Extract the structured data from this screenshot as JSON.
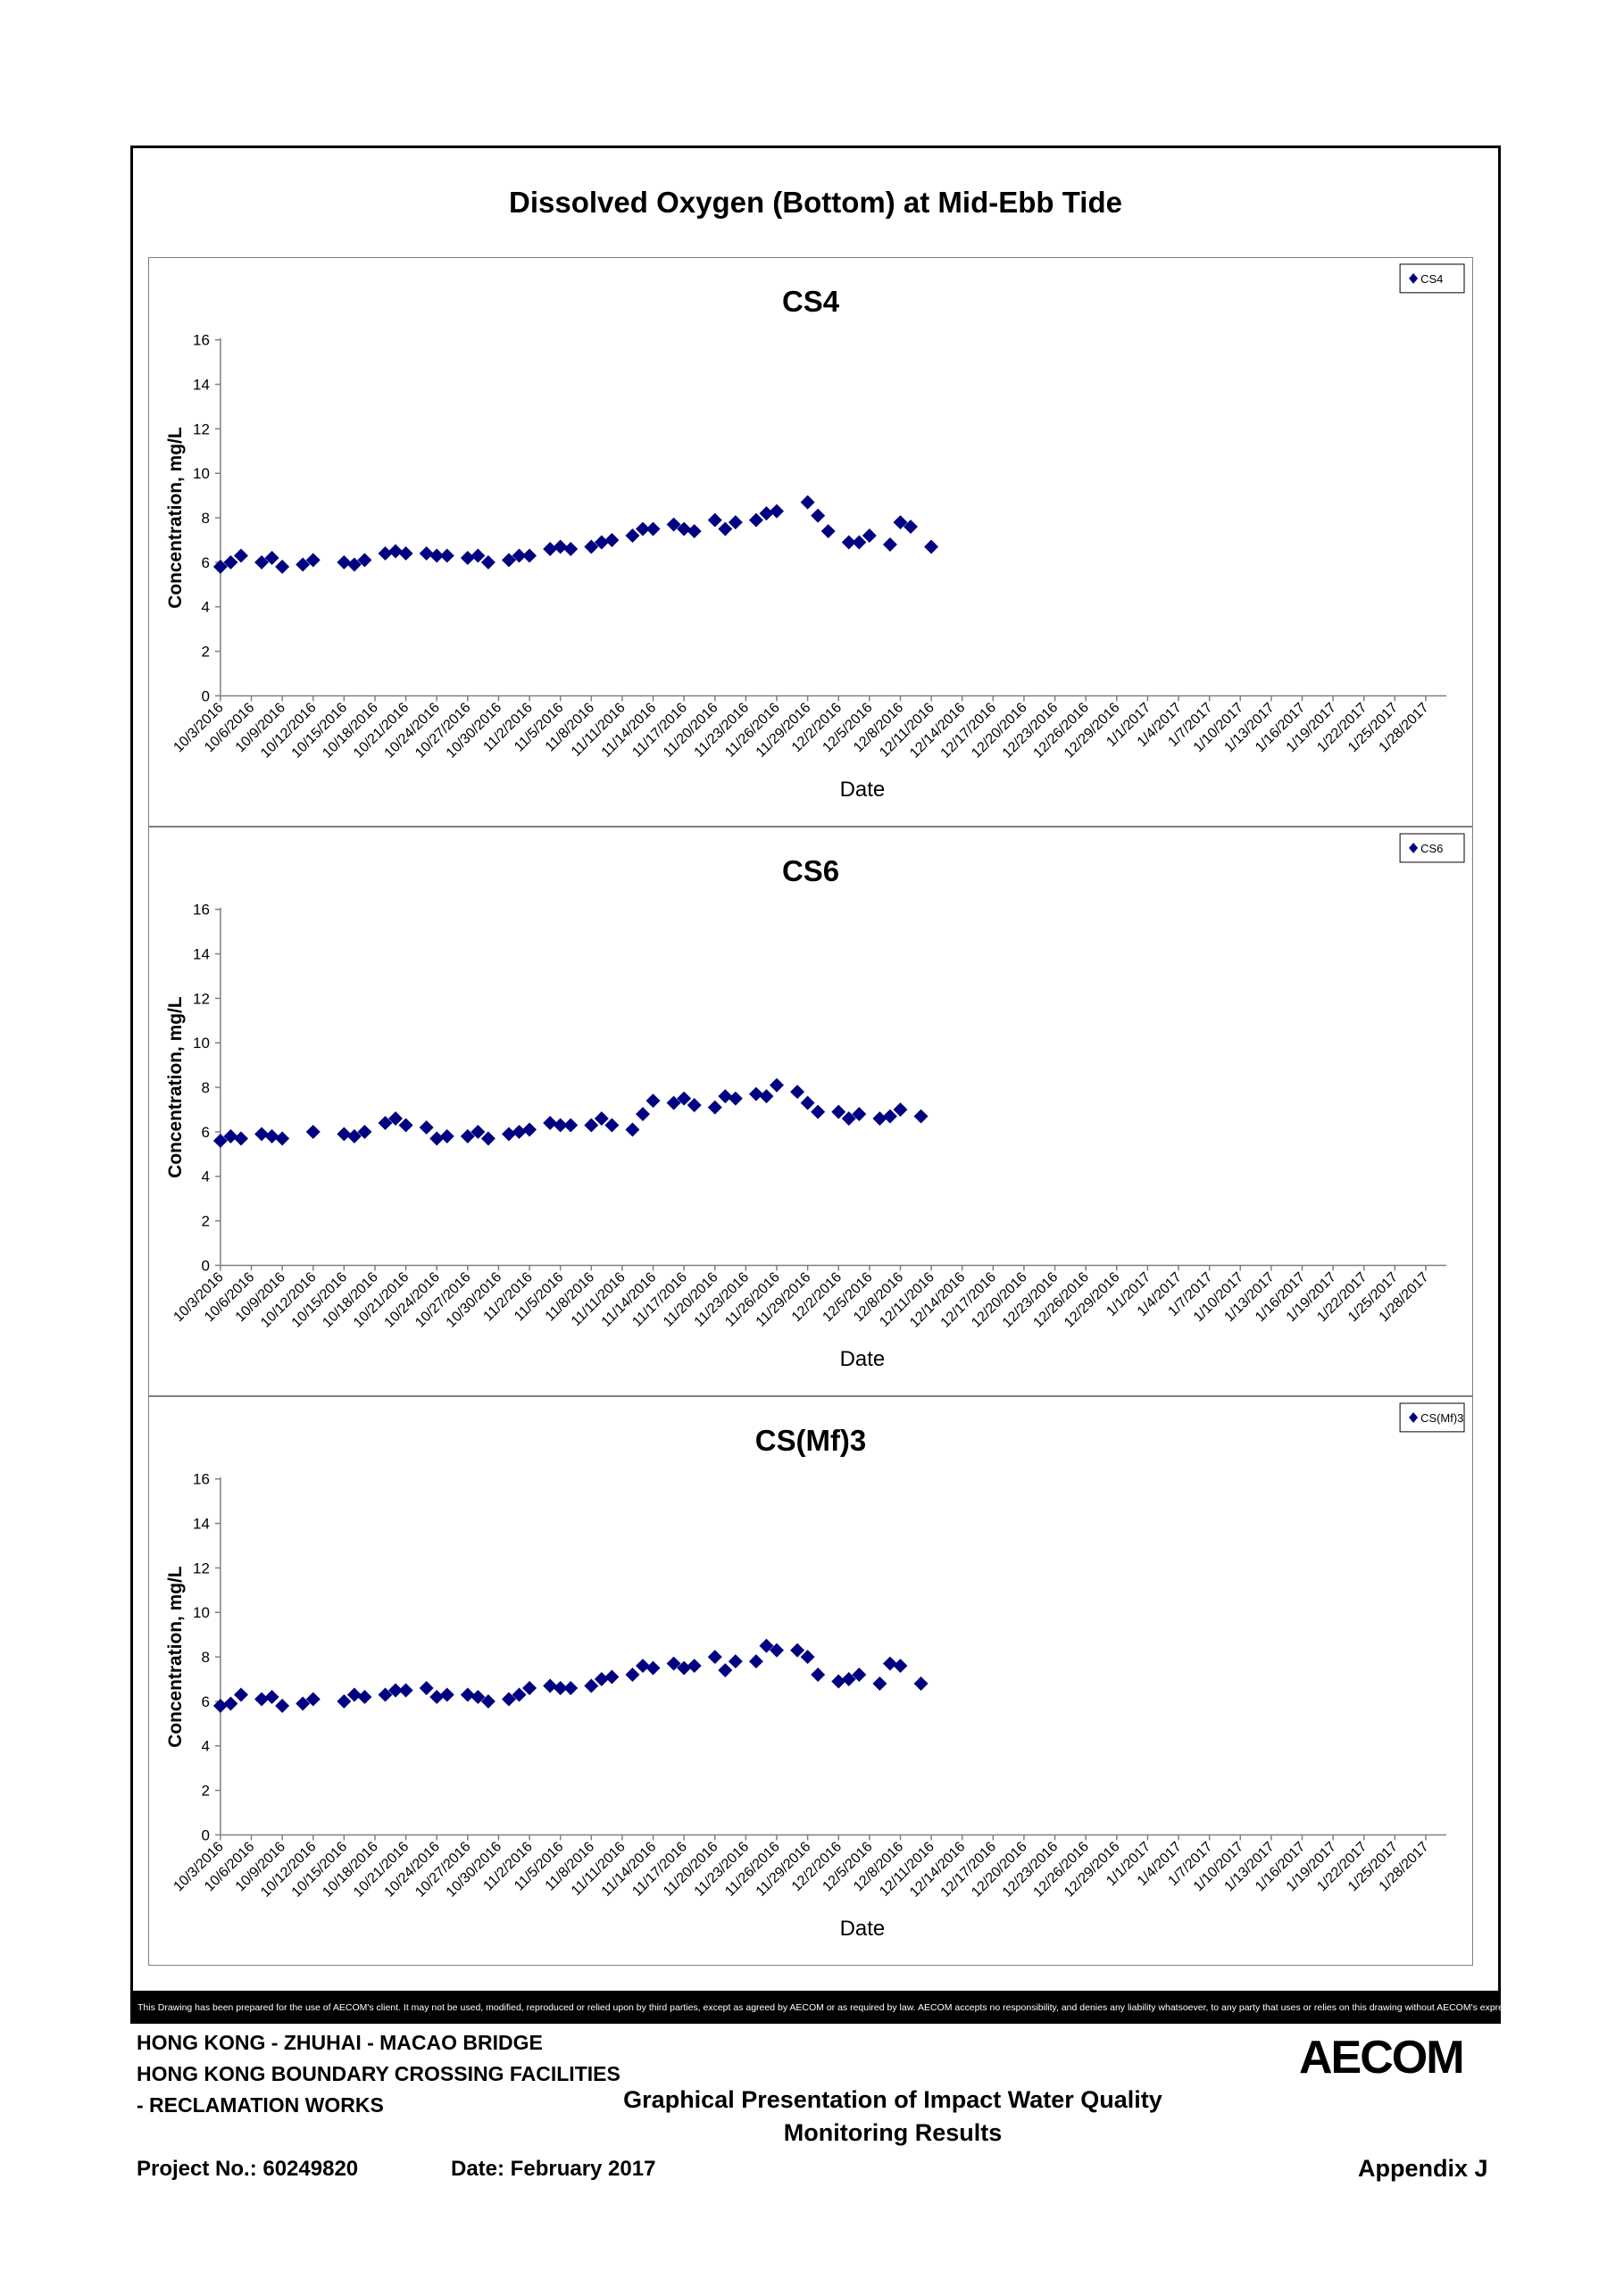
{
  "page": {
    "main_title": "Dissolved Oxygen (Bottom) at Mid-Ebb Tide",
    "disclaimer": "This Drawing has been prepared for the use of AECOM's client. It may not be used, modified, reproduced or relied upon by third parties, except as agreed by AECOM or as required by law. AECOM accepts no responsibility, and denies any liability whatsoever, to any party that uses or relies on this drawing without AECOM's express written consent.",
    "footer": {
      "line1": "HONG KONG - ZHUHAI - MACAO BRIDGE",
      "line2": "HONG KONG BOUNDARY CROSSING FACILITIES",
      "line3": "- RECLAMATION WORKS",
      "center_line1": "Graphical Presentation of Impact Water Quality",
      "center_line2": "Monitoring Results",
      "project_no": "Project No.: 60249820",
      "date": "Date: February 2017",
      "appendix": "Appendix J",
      "logo": "AECOM"
    }
  },
  "chart_data": [
    {
      "type": "scatter",
      "title": "CS4",
      "xlabel": "Date",
      "ylabel": "Concentration, mg/L",
      "ylim": [
        0,
        16
      ],
      "yticks": [
        0,
        2,
        4,
        6,
        8,
        10,
        12,
        14,
        16
      ],
      "xlim": [
        "10/3/2016",
        "1/30/2017"
      ],
      "xtick_labels": [
        "10/3/2016",
        "10/6/2016",
        "10/9/2016",
        "10/12/2016",
        "10/15/2016",
        "10/18/2016",
        "10/21/2016",
        "10/24/2016",
        "10/27/2016",
        "10/30/2016",
        "11/2/2016",
        "11/5/2016",
        "11/8/2016",
        "11/11/2016",
        "11/14/2016",
        "11/17/2016",
        "11/20/2016",
        "11/23/2016",
        "11/26/2016",
        "11/29/2016",
        "12/2/2016",
        "12/5/2016",
        "12/8/2016",
        "12/11/2016",
        "12/14/2016",
        "12/17/2016",
        "12/20/2016",
        "12/23/2016",
        "12/26/2016",
        "12/29/2016",
        "1/1/2017",
        "1/4/2017",
        "1/7/2017",
        "1/10/2017",
        "1/13/2017",
        "1/16/2017",
        "1/19/2017",
        "1/22/2017",
        "1/25/2017",
        "1/28/2017"
      ],
      "legend": "top-right",
      "series": [
        {
          "name": "CS4",
          "color": "#000080",
          "marker": "diamond",
          "points": [
            {
              "x": "10/3/2016",
              "y": 5.8
            },
            {
              "x": "10/4/2016",
              "y": 6.0
            },
            {
              "x": "10/5/2016",
              "y": 6.3
            },
            {
              "x": "10/7/2016",
              "y": 6.0
            },
            {
              "x": "10/8/2016",
              "y": 6.2
            },
            {
              "x": "10/9/2016",
              "y": 5.8
            },
            {
              "x": "10/11/2016",
              "y": 5.9
            },
            {
              "x": "10/12/2016",
              "y": 6.1
            },
            {
              "x": "10/15/2016",
              "y": 6.0
            },
            {
              "x": "10/16/2016",
              "y": 5.9
            },
            {
              "x": "10/17/2016",
              "y": 6.1
            },
            {
              "x": "10/19/2016",
              "y": 6.4
            },
            {
              "x": "10/20/2016",
              "y": 6.5
            },
            {
              "x": "10/21/2016",
              "y": 6.4
            },
            {
              "x": "10/23/2016",
              "y": 6.4
            },
            {
              "x": "10/24/2016",
              "y": 6.3
            },
            {
              "x": "10/25/2016",
              "y": 6.3
            },
            {
              "x": "10/27/2016",
              "y": 6.2
            },
            {
              "x": "10/28/2016",
              "y": 6.3
            },
            {
              "x": "10/29/2016",
              "y": 6.0
            },
            {
              "x": "10/31/2016",
              "y": 6.1
            },
            {
              "x": "11/1/2016",
              "y": 6.3
            },
            {
              "x": "11/2/2016",
              "y": 6.3
            },
            {
              "x": "11/4/2016",
              "y": 6.6
            },
            {
              "x": "11/5/2016",
              "y": 6.7
            },
            {
              "x": "11/6/2016",
              "y": 6.6
            },
            {
              "x": "11/8/2016",
              "y": 6.7
            },
            {
              "x": "11/9/2016",
              "y": 6.9
            },
            {
              "x": "11/10/2016",
              "y": 7.0
            },
            {
              "x": "11/12/2016",
              "y": 7.2
            },
            {
              "x": "11/13/2016",
              "y": 7.5
            },
            {
              "x": "11/14/2016",
              "y": 7.5
            },
            {
              "x": "11/16/2016",
              "y": 7.7
            },
            {
              "x": "11/17/2016",
              "y": 7.5
            },
            {
              "x": "11/18/2016",
              "y": 7.4
            },
            {
              "x": "11/20/2016",
              "y": 7.9
            },
            {
              "x": "11/21/2016",
              "y": 7.5
            },
            {
              "x": "11/22/2016",
              "y": 7.8
            },
            {
              "x": "11/24/2016",
              "y": 7.9
            },
            {
              "x": "11/25/2016",
              "y": 8.2
            },
            {
              "x": "11/26/2016",
              "y": 8.3
            },
            {
              "x": "11/29/2016",
              "y": 8.7
            },
            {
              "x": "11/30/2016",
              "y": 8.1
            },
            {
              "x": "12/1/2016",
              "y": 7.4
            },
            {
              "x": "12/3/2016",
              "y": 6.9
            },
            {
              "x": "12/4/2016",
              "y": 6.9
            },
            {
              "x": "12/5/2016",
              "y": 7.2
            },
            {
              "x": "12/7/2016",
              "y": 6.8
            },
            {
              "x": "12/8/2016",
              "y": 7.8
            },
            {
              "x": "12/9/2016",
              "y": 7.6
            },
            {
              "x": "12/11/2016",
              "y": 6.7
            }
          ]
        }
      ]
    },
    {
      "type": "scatter",
      "title": "CS6",
      "xlabel": "Date",
      "ylabel": "Concentration, mg/L",
      "ylim": [
        0,
        16
      ],
      "yticks": [
        0,
        2,
        4,
        6,
        8,
        10,
        12,
        14,
        16
      ],
      "xlim": [
        "10/3/2016",
        "1/30/2017"
      ],
      "xtick_labels": [
        "10/3/2016",
        "10/6/2016",
        "10/9/2016",
        "10/12/2016",
        "10/15/2016",
        "10/18/2016",
        "10/21/2016",
        "10/24/2016",
        "10/27/2016",
        "10/30/2016",
        "11/2/2016",
        "11/5/2016",
        "11/8/2016",
        "11/11/2016",
        "11/14/2016",
        "11/17/2016",
        "11/20/2016",
        "11/23/2016",
        "11/26/2016",
        "11/29/2016",
        "12/2/2016",
        "12/5/2016",
        "12/8/2016",
        "12/11/2016",
        "12/14/2016",
        "12/17/2016",
        "12/20/2016",
        "12/23/2016",
        "12/26/2016",
        "12/29/2016",
        "1/1/2017",
        "1/4/2017",
        "1/7/2017",
        "1/10/2017",
        "1/13/2017",
        "1/16/2017",
        "1/19/2017",
        "1/22/2017",
        "1/25/2017",
        "1/28/2017"
      ],
      "legend": "top-right",
      "series": [
        {
          "name": "CS6",
          "color": "#000080",
          "marker": "diamond",
          "points": [
            {
              "x": "10/3/2016",
              "y": 5.6
            },
            {
              "x": "10/4/2016",
              "y": 5.8
            },
            {
              "x": "10/5/2016",
              "y": 5.7
            },
            {
              "x": "10/7/2016",
              "y": 5.9
            },
            {
              "x": "10/8/2016",
              "y": 5.8
            },
            {
              "x": "10/9/2016",
              "y": 5.7
            },
            {
              "x": "10/12/2016",
              "y": 6.0
            },
            {
              "x": "10/15/2016",
              "y": 5.9
            },
            {
              "x": "10/16/2016",
              "y": 5.8
            },
            {
              "x": "10/17/2016",
              "y": 6.0
            },
            {
              "x": "10/19/2016",
              "y": 6.4
            },
            {
              "x": "10/20/2016",
              "y": 6.6
            },
            {
              "x": "10/21/2016",
              "y": 6.3
            },
            {
              "x": "10/23/2016",
              "y": 6.2
            },
            {
              "x": "10/24/2016",
              "y": 5.7
            },
            {
              "x": "10/25/2016",
              "y": 5.8
            },
            {
              "x": "10/27/2016",
              "y": 5.8
            },
            {
              "x": "10/28/2016",
              "y": 6.0
            },
            {
              "x": "10/29/2016",
              "y": 5.7
            },
            {
              "x": "10/31/2016",
              "y": 5.9
            },
            {
              "x": "11/1/2016",
              "y": 6.0
            },
            {
              "x": "11/2/2016",
              "y": 6.1
            },
            {
              "x": "11/4/2016",
              "y": 6.4
            },
            {
              "x": "11/5/2016",
              "y": 6.3
            },
            {
              "x": "11/6/2016",
              "y": 6.3
            },
            {
              "x": "11/8/2016",
              "y": 6.3
            },
            {
              "x": "11/9/2016",
              "y": 6.6
            },
            {
              "x": "11/10/2016",
              "y": 6.3
            },
            {
              "x": "11/12/2016",
              "y": 6.1
            },
            {
              "x": "11/13/2016",
              "y": 6.8
            },
            {
              "x": "11/14/2016",
              "y": 7.4
            },
            {
              "x": "11/16/2016",
              "y": 7.3
            },
            {
              "x": "11/17/2016",
              "y": 7.5
            },
            {
              "x": "11/18/2016",
              "y": 7.2
            },
            {
              "x": "11/20/2016",
              "y": 7.1
            },
            {
              "x": "11/21/2016",
              "y": 7.6
            },
            {
              "x": "11/22/2016",
              "y": 7.5
            },
            {
              "x": "11/24/2016",
              "y": 7.7
            },
            {
              "x": "11/25/2016",
              "y": 7.6
            },
            {
              "x": "11/26/2016",
              "y": 8.1
            },
            {
              "x": "11/28/2016",
              "y": 7.8
            },
            {
              "x": "11/29/2016",
              "y": 7.3
            },
            {
              "x": "11/30/2016",
              "y": 6.9
            },
            {
              "x": "12/2/2016",
              "y": 6.9
            },
            {
              "x": "12/3/2016",
              "y": 6.6
            },
            {
              "x": "12/4/2016",
              "y": 6.8
            },
            {
              "x": "12/6/2016",
              "y": 6.6
            },
            {
              "x": "12/7/2016",
              "y": 6.7
            },
            {
              "x": "12/8/2016",
              "y": 7.0
            },
            {
              "x": "12/10/2016",
              "y": 6.7
            }
          ]
        }
      ]
    },
    {
      "type": "scatter",
      "title": "CS(Mf)3",
      "xlabel": "Date",
      "ylabel": "Concentration, mg/L",
      "ylim": [
        0,
        16
      ],
      "yticks": [
        0,
        2,
        4,
        6,
        8,
        10,
        12,
        14,
        16
      ],
      "xlim": [
        "10/3/2016",
        "1/30/2017"
      ],
      "xtick_labels": [
        "10/3/2016",
        "10/6/2016",
        "10/9/2016",
        "10/12/2016",
        "10/15/2016",
        "10/18/2016",
        "10/21/2016",
        "10/24/2016",
        "10/27/2016",
        "10/30/2016",
        "11/2/2016",
        "11/5/2016",
        "11/8/2016",
        "11/11/2016",
        "11/14/2016",
        "11/17/2016",
        "11/20/2016",
        "11/23/2016",
        "11/26/2016",
        "11/29/2016",
        "12/2/2016",
        "12/5/2016",
        "12/8/2016",
        "12/11/2016",
        "12/14/2016",
        "12/17/2016",
        "12/20/2016",
        "12/23/2016",
        "12/26/2016",
        "12/29/2016",
        "1/1/2017",
        "1/4/2017",
        "1/7/2017",
        "1/10/2017",
        "1/13/2017",
        "1/16/2017",
        "1/19/2017",
        "1/22/2017",
        "1/25/2017",
        "1/28/2017"
      ],
      "legend": "top-right",
      "series": [
        {
          "name": "CS(Mf)3",
          "color": "#000080",
          "marker": "diamond",
          "points": [
            {
              "x": "10/3/2016",
              "y": 5.8
            },
            {
              "x": "10/4/2016",
              "y": 5.9
            },
            {
              "x": "10/5/2016",
              "y": 6.3
            },
            {
              "x": "10/7/2016",
              "y": 6.1
            },
            {
              "x": "10/8/2016",
              "y": 6.2
            },
            {
              "x": "10/9/2016",
              "y": 5.8
            },
            {
              "x": "10/11/2016",
              "y": 5.9
            },
            {
              "x": "10/12/2016",
              "y": 6.1
            },
            {
              "x": "10/15/2016",
              "y": 6.0
            },
            {
              "x": "10/16/2016",
              "y": 6.3
            },
            {
              "x": "10/17/2016",
              "y": 6.2
            },
            {
              "x": "10/19/2016",
              "y": 6.3
            },
            {
              "x": "10/20/2016",
              "y": 6.5
            },
            {
              "x": "10/21/2016",
              "y": 6.5
            },
            {
              "x": "10/23/2016",
              "y": 6.6
            },
            {
              "x": "10/24/2016",
              "y": 6.2
            },
            {
              "x": "10/25/2016",
              "y": 6.3
            },
            {
              "x": "10/27/2016",
              "y": 6.3
            },
            {
              "x": "10/28/2016",
              "y": 6.2
            },
            {
              "x": "10/29/2016",
              "y": 6.0
            },
            {
              "x": "10/31/2016",
              "y": 6.1
            },
            {
              "x": "11/1/2016",
              "y": 6.3
            },
            {
              "x": "11/2/2016",
              "y": 6.6
            },
            {
              "x": "11/4/2016",
              "y": 6.7
            },
            {
              "x": "11/5/2016",
              "y": 6.6
            },
            {
              "x": "11/6/2016",
              "y": 6.6
            },
            {
              "x": "11/8/2016",
              "y": 6.7
            },
            {
              "x": "11/9/2016",
              "y": 7.0
            },
            {
              "x": "11/10/2016",
              "y": 7.1
            },
            {
              "x": "11/12/2016",
              "y": 7.2
            },
            {
              "x": "11/13/2016",
              "y": 7.6
            },
            {
              "x": "11/14/2016",
              "y": 7.5
            },
            {
              "x": "11/16/2016",
              "y": 7.7
            },
            {
              "x": "11/17/2016",
              "y": 7.5
            },
            {
              "x": "11/18/2016",
              "y": 7.6
            },
            {
              "x": "11/20/2016",
              "y": 8.0
            },
            {
              "x": "11/21/2016",
              "y": 7.4
            },
            {
              "x": "11/22/2016",
              "y": 7.8
            },
            {
              "x": "11/24/2016",
              "y": 7.8
            },
            {
              "x": "11/25/2016",
              "y": 8.5
            },
            {
              "x": "11/26/2016",
              "y": 8.3
            },
            {
              "x": "11/28/2016",
              "y": 8.3
            },
            {
              "x": "11/29/2016",
              "y": 8.0
            },
            {
              "x": "11/30/2016",
              "y": 7.2
            },
            {
              "x": "12/2/2016",
              "y": 6.9
            },
            {
              "x": "12/3/2016",
              "y": 7.0
            },
            {
              "x": "12/4/2016",
              "y": 7.2
            },
            {
              "x": "12/6/2016",
              "y": 6.8
            },
            {
              "x": "12/7/2016",
              "y": 7.7
            },
            {
              "x": "12/8/2016",
              "y": 7.6
            },
            {
              "x": "12/10/2016",
              "y": 6.8
            }
          ]
        }
      ]
    }
  ]
}
